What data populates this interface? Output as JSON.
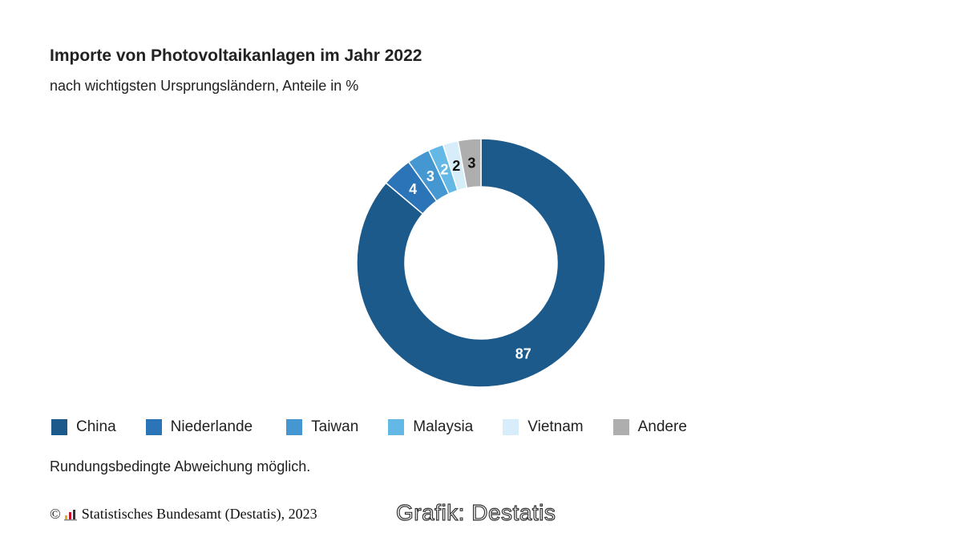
{
  "title": "Importe von Photovoltaikanlagen im Jahr 2022",
  "subtitle": "nach wichtigsten Ursprungsländern, Anteile in %",
  "note": "Rundungsbedingte Abweichung möglich.",
  "footer": {
    "copyright_symbol": "©",
    "source": "Statistisches Bundesamt (Destatis), 2023",
    "logo_icon": "destatis-logo-icon"
  },
  "watermark": "Grafik: Destatis",
  "chart_data": {
    "type": "pie",
    "variant": "donut",
    "title": "Importe von Photovoltaikanlagen im Jahr 2022",
    "subtitle": "nach wichtigsten Ursprungsländern, Anteile in %",
    "unit": "%",
    "legend_position": "bottom-left",
    "slices": [
      {
        "name": "China",
        "value": 87,
        "label": "87",
        "color": "#1c5a8c",
        "label_color": "#ffffff"
      },
      {
        "name": "Niederlande",
        "value": 4,
        "label": "4",
        "color": "#2b74b8",
        "label_color": "#ffffff"
      },
      {
        "name": "Taiwan",
        "value": 3,
        "label": "3",
        "color": "#4497d0",
        "label_color": "#ffffff"
      },
      {
        "name": "Malaysia",
        "value": 2,
        "label": "2",
        "color": "#63b8e6",
        "label_color": "#ffffff"
      },
      {
        "name": "Vietnam",
        "value": 2,
        "label": "2",
        "color": "#d7eefa",
        "label_color": "#111111"
      },
      {
        "name": "Andere",
        "value": 3,
        "label": "3",
        "color": "#aeaeae",
        "label_color": "#111111"
      }
    ]
  }
}
